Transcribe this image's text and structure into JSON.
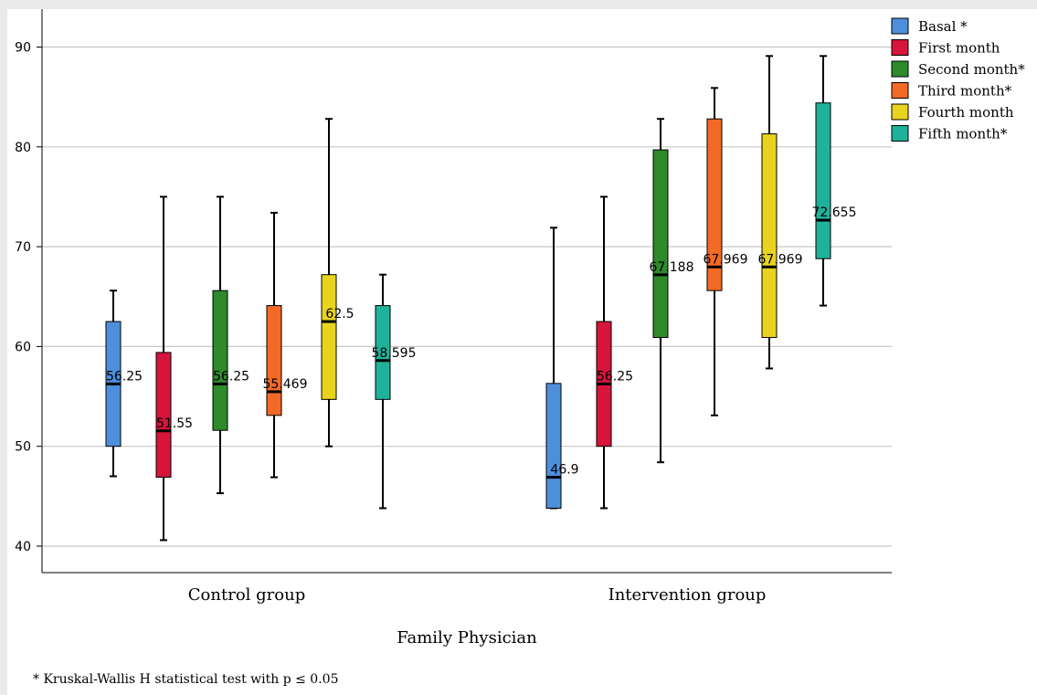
{
  "chart_data": {
    "type": "boxplot",
    "xlabel": "Family Physician",
    "ylabel": "",
    "ylim": [
      37.5,
      92.5
    ],
    "yticks": [
      40,
      50,
      60,
      70,
      80,
      90
    ],
    "grid": true,
    "legend_position": "top-right",
    "groups": [
      "Control group",
      "Intervention group"
    ],
    "series": [
      {
        "name": "Basal *",
        "color": "#4e8fdc",
        "boxes": [
          {
            "group": "Control group",
            "min": 47,
            "q1": 50,
            "median": 56.25,
            "q3": 62.5,
            "max": 65.6,
            "label": "56.25"
          },
          {
            "group": "Intervention group",
            "min": 43.8,
            "q1": 43.8,
            "median": 46.9,
            "q3": 56.3,
            "max": 71.9,
            "label": "46.9"
          }
        ]
      },
      {
        "name": "First month",
        "color": "#d7143c",
        "boxes": [
          {
            "group": "Control group",
            "min": 40.6,
            "q1": 46.9,
            "median": 51.55,
            "q3": 59.4,
            "max": 75,
            "label": "51.55"
          },
          {
            "group": "Intervention group",
            "min": 43.8,
            "q1": 50,
            "median": 56.25,
            "q3": 62.5,
            "max": 75,
            "label": "56.25"
          }
        ]
      },
      {
        "name": "Second month*",
        "color": "#2e8a2b",
        "boxes": [
          {
            "group": "Control group",
            "min": 45.3,
            "q1": 51.6,
            "median": 56.25,
            "q3": 65.6,
            "max": 75,
            "label": "56.25"
          },
          {
            "group": "Intervention group",
            "min": 48.4,
            "q1": 60.9,
            "median": 67.188,
            "q3": 79.7,
            "max": 82.8,
            "label": "67.188"
          }
        ]
      },
      {
        "name": "Third month*",
        "color": "#f26a26",
        "boxes": [
          {
            "group": "Control group",
            "min": 46.9,
            "q1": 53.1,
            "median": 55.469,
            "q3": 64.1,
            "max": 73.4,
            "label": "55.469"
          },
          {
            "group": "Intervention group",
            "min": 53.1,
            "q1": 65.6,
            "median": 67.969,
            "q3": 82.8,
            "max": 85.9,
            "label": "67.969"
          }
        ]
      },
      {
        "name": "Fourth month",
        "color": "#e8d31f",
        "boxes": [
          {
            "group": "Control group",
            "min": 50,
            "q1": 54.7,
            "median": 62.5,
            "q3": 67.2,
            "max": 82.8,
            "label": "62.5"
          },
          {
            "group": "Intervention group",
            "min": 57.8,
            "q1": 60.9,
            "median": 67.969,
            "q3": 81.3,
            "max": 89.1,
            "label": "67.969"
          }
        ]
      },
      {
        "name": "Fifth month*",
        "color": "#1fb29a",
        "boxes": [
          {
            "group": "Control group",
            "min": 43.8,
            "q1": 54.7,
            "median": 58.595,
            "q3": 64.1,
            "max": 67.2,
            "label": "58.595"
          },
          {
            "group": "Intervention group",
            "min": 64.1,
            "q1": 68.8,
            "median": 72.655,
            "q3": 84.4,
            "max": 89.1,
            "label": "72.655"
          }
        ]
      }
    ]
  },
  "footnote": "* Kruskal-Wallis H statistical test with p ≤ 0.05"
}
